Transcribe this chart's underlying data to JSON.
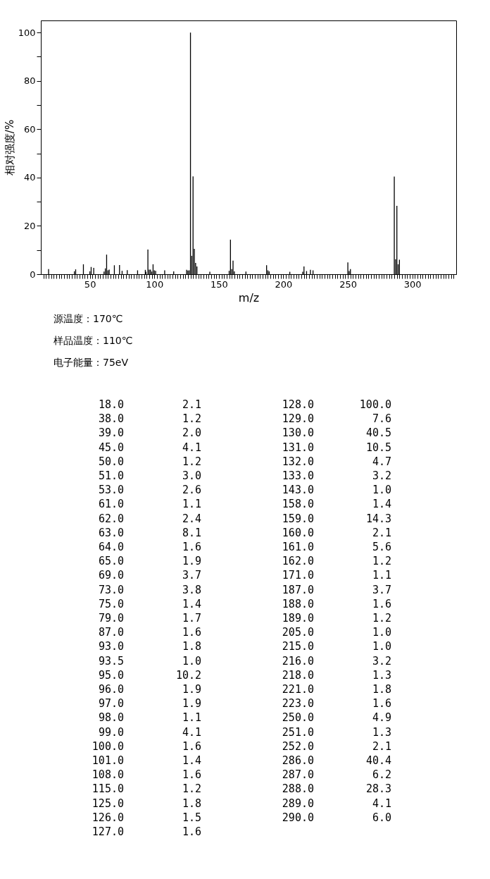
{
  "chart_data": {
    "type": "bar",
    "xlabel": "m/z",
    "ylabel": "相对强度/%",
    "x": [
      18.0,
      38.0,
      39.0,
      45.0,
      50.0,
      51.0,
      53.0,
      61.0,
      62.0,
      63.0,
      64.0,
      65.0,
      69.0,
      73.0,
      75.0,
      79.0,
      87.0,
      93.0,
      93.5,
      95.0,
      96.0,
      97.0,
      98.0,
      99.0,
      100.0,
      101.0,
      108.0,
      115.0,
      125.0,
      126.0,
      127.0,
      128.0,
      129.0,
      130.0,
      131.0,
      132.0,
      133.0,
      143.0,
      158.0,
      159.0,
      160.0,
      161.0,
      162.0,
      171.0,
      187.0,
      188.0,
      189.0,
      205.0,
      215.0,
      216.0,
      218.0,
      221.0,
      223.0,
      250.0,
      251.0,
      252.0,
      286.0,
      287.0,
      288.0,
      289.0,
      290.0
    ],
    "values": [
      2.1,
      1.2,
      2.0,
      4.1,
      1.2,
      3.0,
      2.6,
      1.1,
      2.4,
      8.1,
      1.6,
      1.9,
      3.7,
      3.8,
      1.4,
      1.7,
      1.6,
      1.8,
      1.0,
      10.2,
      1.9,
      1.9,
      1.1,
      4.1,
      1.6,
      1.4,
      1.6,
      1.2,
      1.8,
      1.5,
      1.6,
      100.0,
      7.6,
      40.5,
      10.5,
      4.7,
      3.2,
      1.0,
      1.4,
      14.3,
      2.1,
      5.6,
      1.2,
      1.1,
      3.7,
      1.6,
      1.2,
      1.0,
      1.0,
      3.2,
      1.3,
      1.8,
      1.6,
      4.9,
      1.3,
      2.1,
      40.4,
      6.2,
      28.3,
      4.1,
      6.0
    ],
    "color": "#000000",
    "xlim": [
      12,
      334
    ],
    "xticks": [
      {
        "value": 14,
        "label": null
      },
      {
        "value": 16,
        "label": null
      },
      {
        "value": 18,
        "label": null
      },
      {
        "value": 20,
        "label": null
      },
      {
        "value": 22,
        "label": null
      },
      {
        "value": 24,
        "label": null
      },
      {
        "value": 26,
        "label": null
      },
      {
        "value": 28,
        "label": null
      },
      {
        "value": 30,
        "label": null
      },
      {
        "value": 32,
        "label": null
      },
      {
        "value": 34,
        "label": null
      },
      {
        "value": 36,
        "label": null
      },
      {
        "value": 38,
        "label": null
      },
      {
        "value": 40,
        "label": null
      },
      {
        "value": 42,
        "label": null
      },
      {
        "value": 44,
        "label": null
      },
      {
        "value": 46,
        "label": null
      },
      {
        "value": 48,
        "label": null
      },
      50,
      {
        "value": 52,
        "label": null
      },
      {
        "value": 54,
        "label": null
      },
      {
        "value": 56,
        "label": null
      },
      {
        "value": 58,
        "label": null
      },
      {
        "value": 60,
        "label": null
      },
      {
        "value": 62,
        "label": null
      },
      {
        "value": 64,
        "label": null
      },
      {
        "value": 66,
        "label": null
      },
      {
        "value": 68,
        "label": null
      },
      {
        "value": 70,
        "label": null
      },
      {
        "value": 72,
        "label": null
      },
      {
        "value": 74,
        "label": null
      },
      {
        "value": 76,
        "label": null
      },
      {
        "value": 78,
        "label": null
      },
      {
        "value": 80,
        "label": null
      },
      {
        "value": 82,
        "label": null
      },
      {
        "value": 84,
        "label": null
      },
      {
        "value": 86,
        "label": null
      },
      {
        "value": 88,
        "label": null
      },
      {
        "value": 90,
        "label": null
      },
      {
        "value": 92,
        "label": null
      },
      {
        "value": 94,
        "label": null
      },
      {
        "value": 96,
        "label": null
      },
      {
        "value": 98,
        "label": null
      },
      100,
      {
        "value": 102,
        "label": null
      },
      {
        "value": 104,
        "label": null
      },
      {
        "value": 106,
        "label": null
      },
      {
        "value": 108,
        "label": null
      },
      {
        "value": 110,
        "label": null
      },
      {
        "value": 112,
        "label": null
      },
      {
        "value": 114,
        "label": null
      },
      {
        "value": 116,
        "label": null
      },
      {
        "value": 118,
        "label": null
      },
      {
        "value": 120,
        "label": null
      },
      {
        "value": 122,
        "label": null
      },
      {
        "value": 124,
        "label": null
      },
      {
        "value": 126,
        "label": null
      },
      {
        "value": 128,
        "label": null
      },
      {
        "value": 130,
        "label": null
      },
      {
        "value": 132,
        "label": null
      },
      {
        "value": 134,
        "label": null
      },
      {
        "value": 136,
        "label": null
      },
      {
        "value": 138,
        "label": null
      },
      {
        "value": 140,
        "label": null
      },
      {
        "value": 142,
        "label": null
      },
      {
        "value": 144,
        "label": null
      },
      {
        "value": 146,
        "label": null
      },
      {
        "value": 148,
        "label": null
      },
      150,
      {
        "value": 152,
        "label": null
      },
      {
        "value": 154,
        "label": null
      },
      {
        "value": 156,
        "label": null
      },
      {
        "value": 158,
        "label": null
      },
      {
        "value": 160,
        "label": null
      },
      {
        "value": 162,
        "label": null
      },
      {
        "value": 164,
        "label": null
      },
      {
        "value": 166,
        "label": null
      },
      {
        "value": 168,
        "label": null
      },
      {
        "value": 170,
        "label": null
      },
      {
        "value": 172,
        "label": null
      },
      {
        "value": 174,
        "label": null
      },
      {
        "value": 176,
        "label": null
      },
      {
        "value": 178,
        "label": null
      },
      {
        "value": 180,
        "label": null
      },
      {
        "value": 182,
        "label": null
      },
      {
        "value": 184,
        "label": null
      },
      {
        "value": 186,
        "label": null
      },
      {
        "value": 188,
        "label": null
      },
      {
        "value": 190,
        "label": null
      },
      {
        "value": 192,
        "label": null
      },
      {
        "value": 194,
        "label": null
      },
      {
        "value": 196,
        "label": null
      },
      {
        "value": 198,
        "label": null
      },
      200,
      {
        "value": 202,
        "label": null
      },
      {
        "value": 204,
        "label": null
      },
      {
        "value": 206,
        "label": null
      },
      {
        "value": 208,
        "label": null
      },
      {
        "value": 210,
        "label": null
      },
      {
        "value": 212,
        "label": null
      },
      {
        "value": 214,
        "label": null
      },
      {
        "value": 216,
        "label": null
      },
      {
        "value": 218,
        "label": null
      },
      {
        "value": 220,
        "label": null
      },
      {
        "value": 222,
        "label": null
      },
      {
        "value": 224,
        "label": null
      },
      {
        "value": 226,
        "label": null
      },
      {
        "value": 228,
        "label": null
      },
      {
        "value": 230,
        "label": null
      },
      {
        "value": 232,
        "label": null
      },
      {
        "value": 234,
        "label": null
      },
      {
        "value": 236,
        "label": null
      },
      {
        "value": 238,
        "label": null
      },
      {
        "value": 240,
        "label": null
      },
      {
        "value": 242,
        "label": null
      },
      {
        "value": 244,
        "label": null
      },
      {
        "value": 246,
        "label": null
      },
      {
        "value": 248,
        "label": null
      },
      250,
      {
        "value": 252,
        "label": null
      },
      {
        "value": 254,
        "label": null
      },
      {
        "value": 256,
        "label": null
      },
      {
        "value": 258,
        "label": null
      },
      {
        "value": 260,
        "label": null
      },
      {
        "value": 262,
        "label": null
      },
      {
        "value": 264,
        "label": null
      },
      {
        "value": 266,
        "label": null
      },
      {
        "value": 268,
        "label": null
      },
      {
        "value": 270,
        "label": null
      },
      {
        "value": 272,
        "label": null
      },
      {
        "value": 274,
        "label": null
      },
      {
        "value": 276,
        "label": null
      },
      {
        "value": 278,
        "label": null
      },
      {
        "value": 280,
        "label": null
      },
      {
        "value": 282,
        "label": null
      },
      {
        "value": 284,
        "label": null
      },
      {
        "value": 286,
        "label": null
      },
      {
        "value": 288,
        "label": null
      },
      {
        "value": 290,
        "label": null
      },
      {
        "value": 292,
        "label": null
      },
      {
        "value": 294,
        "label": null
      },
      {
        "value": 296,
        "label": null
      },
      {
        "value": 298,
        "label": null
      },
      300,
      {
        "value": 302,
        "label": null
      },
      {
        "value": 304,
        "label": null
      },
      {
        "value": 306,
        "label": null
      },
      {
        "value": 308,
        "label": null
      },
      {
        "value": 310,
        "label": null
      },
      {
        "value": 312,
        "label": null
      },
      {
        "value": 314,
        "label": null
      },
      {
        "value": 316,
        "label": null
      },
      {
        "value": 318,
        "label": null
      },
      {
        "value": 320,
        "label": null
      },
      {
        "value": 322,
        "label": null
      },
      {
        "value": 324,
        "label": null
      },
      {
        "value": 326,
        "label": null
      },
      {
        "value": 328,
        "label": null
      },
      {
        "value": 330,
        "label": null
      },
      {
        "value": 332,
        "label": null
      }
    ],
    "ylim": [
      0,
      105
    ],
    "yticks": [
      0,
      {
        "value": 10,
        "label": null
      },
      20,
      {
        "value": 30,
        "label": null
      },
      40,
      {
        "value": 50,
        "label": null
      },
      60,
      {
        "value": 70,
        "label": null
      },
      80,
      {
        "value": 90,
        "label": null
      },
      100
    ],
    "annotations": [
      "源温度：170℃",
      "样品温度：110℃",
      "电子能量：75eV",
      "18.0",
      "2.1",
      "38.0",
      "1.2",
      "39.0",
      "2.0",
      "45.0",
      "4.1",
      "50.0",
      "1.2",
      "51.0",
      "3.0",
      "53.0",
      "2.6",
      "61.0",
      "1.1",
      "62.0",
      "2.4",
      "63.0",
      "8.1",
      "64.0",
      "1.6",
      "65.0",
      "1.9",
      "69.0",
      "3.7",
      "73.0",
      "3.8",
      "75.0",
      "1.4",
      "79.0",
      "1.7",
      "87.0",
      "1.6",
      "93.0",
      "1.8",
      "93.5",
      "1.0",
      "95.0",
      "10.2",
      "96.0",
      "1.9",
      "97.0",
      "1.9",
      "98.0",
      "1.1",
      "99.0",
      "4.1",
      "100.0",
      "1.6",
      "101.0",
      "1.4",
      "108.0",
      "1.6",
      "115.0",
      "1.2",
      "125.0",
      "1.8",
      "126.0",
      "1.5",
      "127.0",
      "1.6",
      "128.0",
      "100.0",
      "129.0",
      "7.6",
      "130.0",
      "40.5",
      "131.0",
      "10.5",
      "132.0",
      "4.7",
      "133.0",
      "3.2",
      "143.0",
      "1.0",
      "158.0",
      "1.4",
      "159.0",
      "14.3",
      "160.0",
      "2.1",
      "161.0",
      "5.6",
      "162.0",
      "1.2",
      "171.0",
      "1.1",
      "187.0",
      "3.7",
      "188.0",
      "1.6",
      "189.0",
      "1.2",
      "205.0",
      "1.0",
      "215.0",
      "1.0",
      "216.0",
      "3.2",
      "218.0",
      "1.3",
      "221.0",
      "1.8",
      "223.0",
      "1.6",
      "250.0",
      "4.9",
      "251.0",
      "1.3",
      "252.0",
      "2.1",
      "286.0",
      "40.4",
      "287.0",
      "6.2",
      "288.0",
      "28.3",
      "289.0",
      "4.1",
      "290.0",
      "6.0"
    ]
  }
}
